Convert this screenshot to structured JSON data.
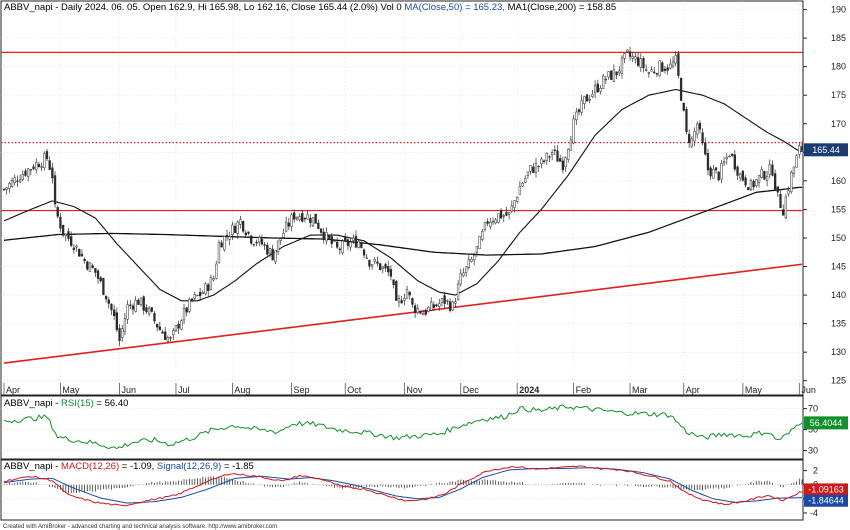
{
  "chart_data": {
    "type": "candlestick",
    "symbol": "ABBV_napi",
    "main_title": {
      "prefix": "ABBV_napi - Daily 2024. 06. 05. Open 162.9, Hi 165.98, Lo 162.16, Close 165.44 (2.0%) Vol 0",
      "ma50": "MA(Close,50) = 165.23,",
      "ma200": "MA1(Close,200) = 158.85"
    },
    "x_labels": [
      {
        "i": 0,
        "label": "Apr"
      },
      {
        "i": 21,
        "label": "May"
      },
      {
        "i": 43,
        "label": "Jun"
      },
      {
        "i": 64,
        "label": "Jul"
      },
      {
        "i": 85,
        "label": "Aug"
      },
      {
        "i": 107,
        "label": "Sep"
      },
      {
        "i": 127,
        "label": "Oct"
      },
      {
        "i": 149,
        "label": "Nov"
      },
      {
        "i": 170,
        "label": "Dec"
      },
      {
        "i": 191,
        "label": "2024"
      },
      {
        "i": 212,
        "label": "Feb"
      },
      {
        "i": 233,
        "label": "Mar"
      },
      {
        "i": 253,
        "label": "Apr"
      },
      {
        "i": 275,
        "label": "May"
      },
      {
        "i": 296,
        "label": "Jun"
      }
    ],
    "n_bars": 298,
    "price": {
      "ylim": [
        122.5,
        191.5
      ],
      "ticks": [
        125,
        130,
        135,
        140,
        145,
        150,
        155,
        160,
        165,
        170,
        175,
        180,
        185,
        190
      ],
      "anchors": [
        [
          0,
          158.5
        ],
        [
          6,
          161
        ],
        [
          12,
          163
        ],
        [
          16,
          164
        ],
        [
          18,
          161
        ],
        [
          19,
          155
        ],
        [
          22,
          151
        ],
        [
          26,
          149
        ],
        [
          30,
          146
        ],
        [
          34,
          144
        ],
        [
          38,
          140
        ],
        [
          41,
          136
        ],
        [
          43,
          132
        ],
        [
          46,
          138
        ],
        [
          50,
          139
        ],
        [
          54,
          137
        ],
        [
          58,
          134
        ],
        [
          62,
          132
        ],
        [
          66,
          136
        ],
        [
          70,
          139
        ],
        [
          74,
          140.5
        ],
        [
          78,
          143
        ],
        [
          80,
          149
        ],
        [
          84,
          151
        ],
        [
          88,
          153
        ],
        [
          92,
          150
        ],
        [
          96,
          149
        ],
        [
          100,
          147
        ],
        [
          104,
          151
        ],
        [
          108,
          154
        ],
        [
          112,
          154
        ],
        [
          116,
          153
        ],
        [
          120,
          150
        ],
        [
          124,
          148
        ],
        [
          128,
          149
        ],
        [
          132,
          149.5
        ],
        [
          136,
          146
        ],
        [
          140,
          145
        ],
        [
          144,
          143.5
        ],
        [
          146,
          138
        ],
        [
          150,
          141
        ],
        [
          152,
          138
        ],
        [
          156,
          137
        ],
        [
          160,
          138
        ],
        [
          164,
          139
        ],
        [
          167,
          138
        ],
        [
          170,
          143
        ],
        [
          174,
          146
        ],
        [
          176,
          148
        ],
        [
          180,
          153
        ],
        [
          184,
          154
        ],
        [
          188,
          154
        ],
        [
          192,
          159
        ],
        [
          196,
          162
        ],
        [
          200,
          163
        ],
        [
          204,
          165
        ],
        [
          208,
          163
        ],
        [
          212,
          170
        ],
        [
          216,
          174
        ],
        [
          220,
          176
        ],
        [
          224,
          178
        ],
        [
          228,
          179
        ],
        [
          232,
          182
        ],
        [
          236,
          181
        ],
        [
          240,
          179
        ],
        [
          244,
          180
        ],
        [
          248,
          180
        ],
        [
          250,
          181
        ],
        [
          252,
          175
        ],
        [
          254,
          168
        ],
        [
          256,
          167
        ],
        [
          258,
          170
        ],
        [
          262,
          162
        ],
        [
          266,
          161
        ],
        [
          270,
          165
        ],
        [
          274,
          161
        ],
        [
          278,
          159
        ],
        [
          282,
          161
        ],
        [
          286,
          162
        ],
        [
          288,
          157
        ],
        [
          290,
          155
        ],
        [
          293,
          161
        ],
        [
          296,
          165.4
        ]
      ],
      "hlines": [
        {
          "value": 182.5,
          "style": "solid",
          "color": "#e0201b"
        },
        {
          "value": 166.7,
          "style": "dotted",
          "color": "#e0201b"
        },
        {
          "value": 154.8,
          "style": "solid",
          "color": "#e0201b"
        }
      ],
      "trendline": {
        "from": [
          0,
          128.1
        ],
        "to": [
          297,
          145.4
        ],
        "color": "#e0201b"
      },
      "last_close": 165.44,
      "last_close_label": "165.44",
      "ma50_anchors": [
        [
          0,
          153
        ],
        [
          10,
          155
        ],
        [
          18,
          156.5
        ],
        [
          26,
          155.5
        ],
        [
          34,
          153.5
        ],
        [
          42,
          149
        ],
        [
          50,
          145
        ],
        [
          58,
          141
        ],
        [
          66,
          139
        ],
        [
          72,
          139
        ],
        [
          78,
          140
        ],
        [
          86,
          142.5
        ],
        [
          94,
          145.5
        ],
        [
          104,
          148.5
        ],
        [
          114,
          150.5
        ],
        [
          124,
          150.5
        ],
        [
          134,
          149.5
        ],
        [
          144,
          146.5
        ],
        [
          154,
          142.5
        ],
        [
          162,
          140.5
        ],
        [
          168,
          140
        ],
        [
          176,
          142
        ],
        [
          184,
          146
        ],
        [
          192,
          151
        ],
        [
          200,
          155
        ],
        [
          210,
          161
        ],
        [
          220,
          168
        ],
        [
          230,
          172.5
        ],
        [
          240,
          175
        ],
        [
          250,
          176
        ],
        [
          260,
          175
        ],
        [
          268,
          173.5
        ],
        [
          276,
          171
        ],
        [
          284,
          168.5
        ],
        [
          290,
          167
        ],
        [
          296,
          165.2
        ]
      ],
      "ma200_anchors": [
        [
          0,
          149.6
        ],
        [
          20,
          150.6
        ],
        [
          40,
          150.8
        ],
        [
          60,
          150.6
        ],
        [
          80,
          150.3
        ],
        [
          100,
          150
        ],
        [
          120,
          149.8
        ],
        [
          140,
          148.8
        ],
        [
          160,
          147.5
        ],
        [
          180,
          147
        ],
        [
          200,
          147.2
        ],
        [
          220,
          148.5
        ],
        [
          240,
          151
        ],
        [
          260,
          154.5
        ],
        [
          280,
          158
        ],
        [
          296,
          158.85
        ]
      ]
    },
    "rsi": {
      "title_prefix": "ABBV_napi - ",
      "title_name": "RSI(15)",
      "title_value": " = 56.40",
      "ylim": [
        22,
        82
      ],
      "ticks": [
        30,
        50,
        70
      ],
      "tick_labels": [
        "30",
        "50",
        "70"
      ],
      "last": 56.4044,
      "last_label": "56.4044",
      "anchors": [
        [
          0,
          58
        ],
        [
          8,
          60
        ],
        [
          16,
          62
        ],
        [
          20,
          43
        ],
        [
          26,
          40
        ],
        [
          34,
          37
        ],
        [
          42,
          32
        ],
        [
          48,
          38
        ],
        [
          56,
          40
        ],
        [
          62,
          36
        ],
        [
          70,
          42
        ],
        [
          78,
          50
        ],
        [
          86,
          54
        ],
        [
          94,
          50
        ],
        [
          102,
          48
        ],
        [
          108,
          56
        ],
        [
          116,
          55
        ],
        [
          124,
          50
        ],
        [
          132,
          48
        ],
        [
          140,
          45
        ],
        [
          146,
          42
        ],
        [
          154,
          44
        ],
        [
          162,
          46
        ],
        [
          170,
          54
        ],
        [
          178,
          60
        ],
        [
          186,
          62
        ],
        [
          192,
          70
        ],
        [
          200,
          68
        ],
        [
          210,
          72
        ],
        [
          220,
          69
        ],
        [
          230,
          66
        ],
        [
          240,
          65
        ],
        [
          248,
          64
        ],
        [
          254,
          48
        ],
        [
          260,
          42
        ],
        [
          268,
          46
        ],
        [
          276,
          44
        ],
        [
          284,
          48
        ],
        [
          288,
          40
        ],
        [
          292,
          46
        ],
        [
          296,
          56.4
        ]
      ]
    },
    "macd": {
      "title_prefix": "ABBV_napi - ",
      "title_macd": "MACD(12,26)",
      "title_macd_value": " = -1.09,",
      "title_signal": "Signal(12,26,9)",
      "title_signal_value": " = -1.85",
      "ylim": [
        -5,
        3.5
      ],
      "ticks": [
        2,
        0,
        -2,
        -4
      ],
      "tick_labels": [
        "2",
        "0",
        "-2",
        "-4"
      ],
      "macd_last": -1.09163,
      "macd_last_label": "-1.09163",
      "signal_last": -1.84644,
      "signal_last_label": "-1.84644",
      "macd_anchors": [
        [
          0,
          0.5
        ],
        [
          10,
          1.2
        ],
        [
          18,
          0.6
        ],
        [
          24,
          -1.5
        ],
        [
          34,
          -2.5
        ],
        [
          44,
          -3
        ],
        [
          54,
          -2.2
        ],
        [
          64,
          -1.5
        ],
        [
          74,
          0.2
        ],
        [
          84,
          1.6
        ],
        [
          94,
          1.2
        ],
        [
          104,
          0.5
        ],
        [
          110,
          1.3
        ],
        [
          118,
          0.8
        ],
        [
          126,
          -0.3
        ],
        [
          134,
          -0.6
        ],
        [
          142,
          -1.5
        ],
        [
          150,
          -2.3
        ],
        [
          158,
          -2
        ],
        [
          164,
          -1.3
        ],
        [
          172,
          0.5
        ],
        [
          180,
          2
        ],
        [
          190,
          2.6
        ],
        [
          198,
          2.2
        ],
        [
          206,
          2.4
        ],
        [
          214,
          2.6
        ],
        [
          222,
          2.3
        ],
        [
          230,
          2.1
        ],
        [
          240,
          1.3
        ],
        [
          248,
          0.5
        ],
        [
          254,
          -1.2
        ],
        [
          260,
          -2.1
        ],
        [
          268,
          -2.8
        ],
        [
          276,
          -2.3
        ],
        [
          284,
          -1.5
        ],
        [
          290,
          -2.2
        ],
        [
          296,
          -1.09
        ]
      ],
      "signal_anchors": [
        [
          0,
          0.3
        ],
        [
          10,
          0.8
        ],
        [
          18,
          0.9
        ],
        [
          26,
          -0.5
        ],
        [
          36,
          -1.9
        ],
        [
          46,
          -2.6
        ],
        [
          56,
          -2.4
        ],
        [
          66,
          -1.8
        ],
        [
          76,
          -0.6
        ],
        [
          86,
          0.9
        ],
        [
          96,
          1.2
        ],
        [
          106,
          0.8
        ],
        [
          114,
          1
        ],
        [
          122,
          0.6
        ],
        [
          130,
          0
        ],
        [
          138,
          -0.8
        ],
        [
          146,
          -1.6
        ],
        [
          154,
          -2
        ],
        [
          162,
          -1.8
        ],
        [
          170,
          -0.6
        ],
        [
          178,
          1
        ],
        [
          188,
          2.1
        ],
        [
          198,
          2.3
        ],
        [
          208,
          2.3
        ],
        [
          218,
          2.4
        ],
        [
          228,
          2.2
        ],
        [
          238,
          1.7
        ],
        [
          248,
          0.8
        ],
        [
          256,
          -0.8
        ],
        [
          264,
          -2
        ],
        [
          272,
          -2.5
        ],
        [
          280,
          -2.3
        ],
        [
          288,
          -1.9
        ],
        [
          296,
          -1.85
        ]
      ]
    }
  },
  "footer": "Created with AmiBroker - advanced charting and technical analysis software. http://www.amibroker.com"
}
